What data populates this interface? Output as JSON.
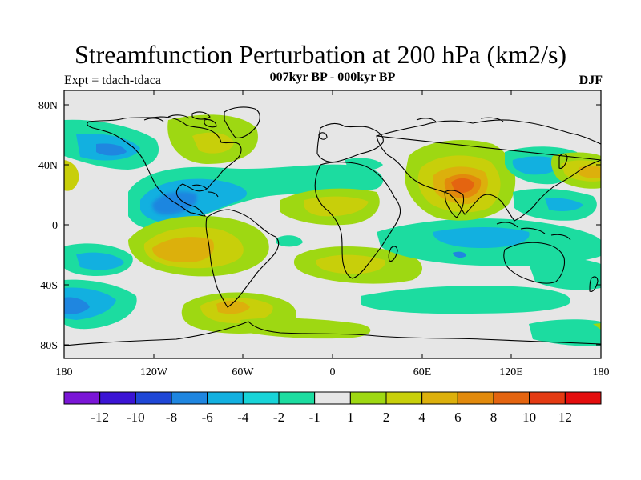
{
  "header": {
    "title": "Streamfunction Perturbation at 200 hPa (km2/s)",
    "left_label": "Expt = tdach-tdaca",
    "center_label": "007kyr BP - 000kyr BP",
    "right_label": "DJF"
  },
  "axes": {
    "y_ticks": [
      "80N",
      "40N",
      "0",
      "40S",
      "80S"
    ],
    "x_ticks": [
      "180",
      "120W",
      "60W",
      "0",
      "60E",
      "120E",
      "180"
    ]
  },
  "colorbar": {
    "colors": [
      "#7a16d6",
      "#3b14d4",
      "#1f47d6",
      "#1f86e0",
      "#12b0e0",
      "#18d4d8",
      "#1cdca0",
      "#e6e6e6",
      "#9ed812",
      "#c8cf0a",
      "#dcb00c",
      "#e28a0c",
      "#e46410",
      "#e43a12",
      "#e40d0d"
    ],
    "labels": [
      "-12",
      "-10",
      "-8",
      "-6",
      "-4",
      "-2",
      "-1",
      "1",
      "2",
      "4",
      "6",
      "8",
      "10",
      "12"
    ]
  }
}
